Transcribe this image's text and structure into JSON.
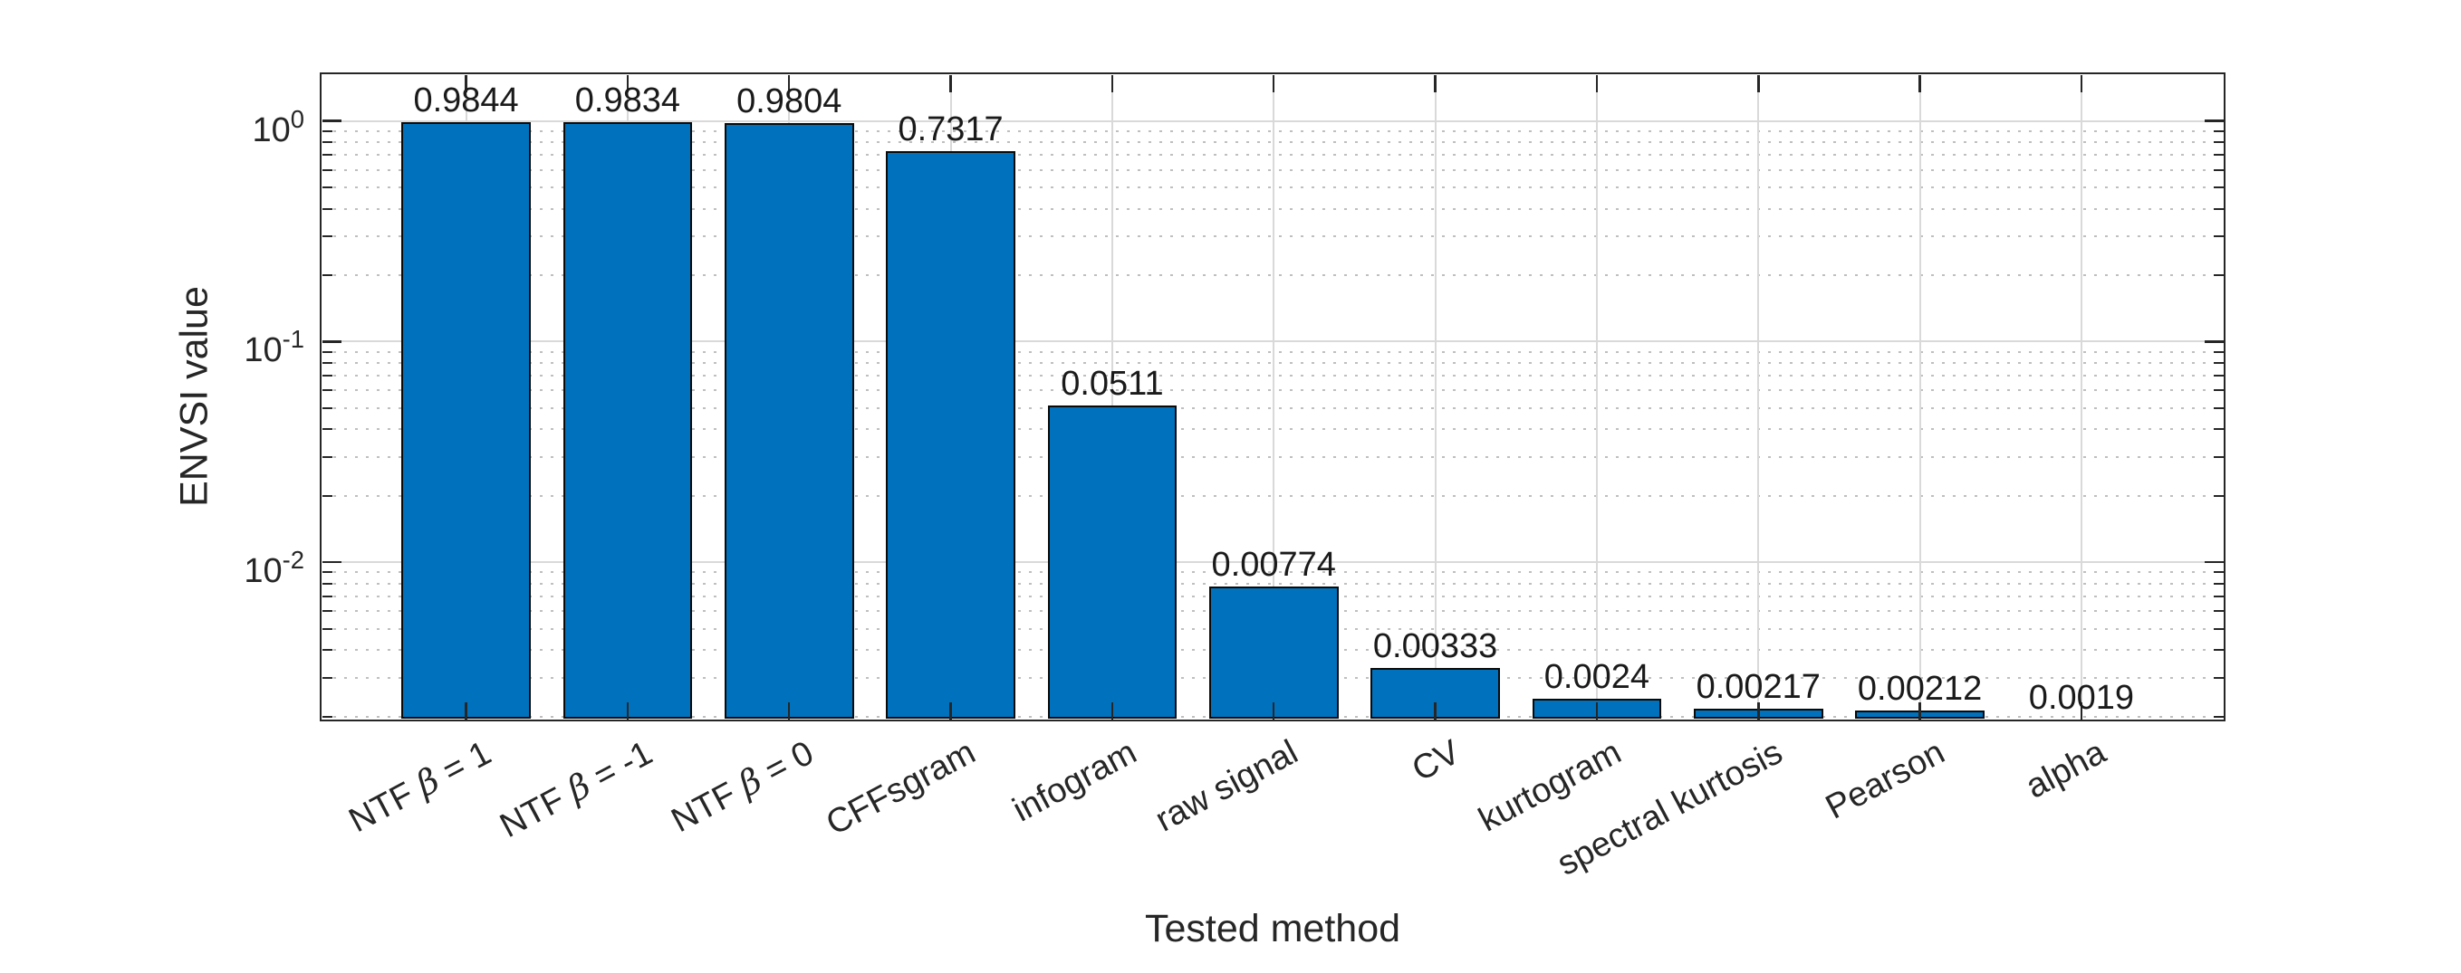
{
  "chart_data": {
    "type": "bar",
    "title": "",
    "xlabel": "Tested method",
    "ylabel": "ENVSI value",
    "categories": [
      "NTF β = 1",
      "NTF β = -1",
      "NTF β = 0",
      "CFFsgram",
      "infogram",
      "raw signal",
      "CV",
      "kurtogram",
      "spectral kurtosis",
      "Pearson",
      "alpha"
    ],
    "values": [
      0.9844,
      0.9834,
      0.9804,
      0.7317,
      0.0511,
      0.00774,
      0.00333,
      0.0024,
      0.00217,
      0.00212,
      0.0019
    ],
    "value_labels": [
      "0.9844",
      "0.9834",
      "0.9804",
      "0.7317",
      "0.0511",
      "0.00774",
      "0.00333",
      "0.0024",
      "0.00217",
      "0.00212",
      "0.0019"
    ],
    "yscale": "log",
    "ylim": [
      0.0019,
      1.66
    ],
    "xlim": [
      0.094,
      11.892
    ],
    "yticks": {
      "values": [
        1,
        0.1,
        0.01
      ],
      "labels": [
        "10^{0}",
        "10^{-1}",
        "10^{-2}"
      ]
    },
    "grid": "on",
    "minor_grid": "dotted",
    "legend": "none",
    "bar_color": "#0072BD",
    "bar_edge_color": "#000000",
    "grid_color": "#d9d9d9",
    "minor_grid_color": "#bfbfbf",
    "axis_color": "#262626",
    "tick_label_rotation_deg": 28,
    "bar_width_ratio": 0.8
  }
}
